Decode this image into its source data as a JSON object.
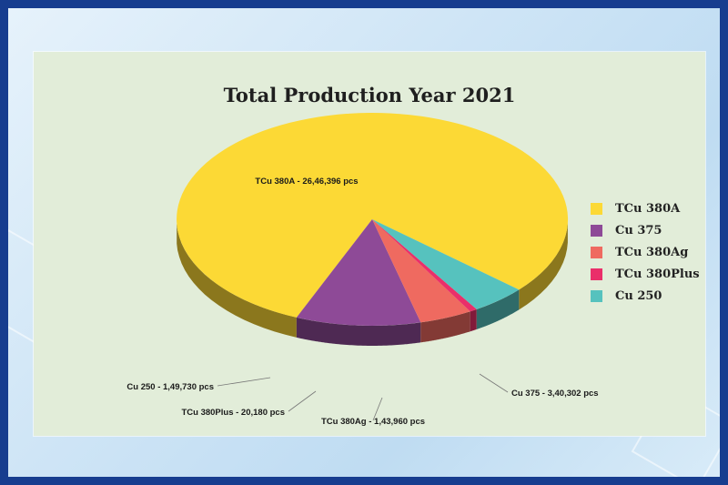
{
  "chart_data": {
    "type": "pie",
    "title": "Total Production Year 2021",
    "legend_position": "right",
    "slices": [
      {
        "name": "TCu 380A",
        "value": 2646396,
        "label": "TCu 380A - 26,46,396 pcs",
        "color": "#fcd935"
      },
      {
        "name": "Cu 375",
        "value": 340302,
        "label": "Cu 375 - 3,40,302 pcs",
        "color": "#8e4a97"
      },
      {
        "name": "TCu 380Ag",
        "value": 143960,
        "label": "TCu 380Ag - 1,43,960 pcs",
        "color": "#ef6a60"
      },
      {
        "name": "TCu 380Plus",
        "value": 20180,
        "label": "TCu 380Plus - 20,180 pcs",
        "color": "#ea2f6a"
      },
      {
        "name": "Cu 250",
        "value": 149730,
        "label": "Cu 250 - 1,49,730 pcs",
        "color": "#56c2be"
      }
    ]
  }
}
